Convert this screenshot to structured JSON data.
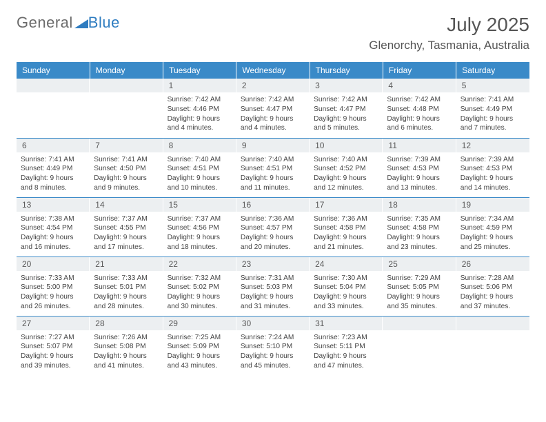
{
  "logo": {
    "word1": "General",
    "word2": "Blue"
  },
  "colors": {
    "header_bg": "#3a8ac8",
    "header_text": "#ffffff",
    "daynum_bg": "#eceff1",
    "border": "#3a8ac8"
  },
  "title": "July 2025",
  "location": "Glenorchy, Tasmania, Australia",
  "day_headers": [
    "Sunday",
    "Monday",
    "Tuesday",
    "Wednesday",
    "Thursday",
    "Friday",
    "Saturday"
  ],
  "weeks": [
    [
      null,
      null,
      {
        "n": "1",
        "sr": "Sunrise: 7:42 AM",
        "ss": "Sunset: 4:46 PM",
        "d1": "Daylight: 9 hours",
        "d2": "and 4 minutes."
      },
      {
        "n": "2",
        "sr": "Sunrise: 7:42 AM",
        "ss": "Sunset: 4:47 PM",
        "d1": "Daylight: 9 hours",
        "d2": "and 4 minutes."
      },
      {
        "n": "3",
        "sr": "Sunrise: 7:42 AM",
        "ss": "Sunset: 4:47 PM",
        "d1": "Daylight: 9 hours",
        "d2": "and 5 minutes."
      },
      {
        "n": "4",
        "sr": "Sunrise: 7:42 AM",
        "ss": "Sunset: 4:48 PM",
        "d1": "Daylight: 9 hours",
        "d2": "and 6 minutes."
      },
      {
        "n": "5",
        "sr": "Sunrise: 7:41 AM",
        "ss": "Sunset: 4:49 PM",
        "d1": "Daylight: 9 hours",
        "d2": "and 7 minutes."
      }
    ],
    [
      {
        "n": "6",
        "sr": "Sunrise: 7:41 AM",
        "ss": "Sunset: 4:49 PM",
        "d1": "Daylight: 9 hours",
        "d2": "and 8 minutes."
      },
      {
        "n": "7",
        "sr": "Sunrise: 7:41 AM",
        "ss": "Sunset: 4:50 PM",
        "d1": "Daylight: 9 hours",
        "d2": "and 9 minutes."
      },
      {
        "n": "8",
        "sr": "Sunrise: 7:40 AM",
        "ss": "Sunset: 4:51 PM",
        "d1": "Daylight: 9 hours",
        "d2": "and 10 minutes."
      },
      {
        "n": "9",
        "sr": "Sunrise: 7:40 AM",
        "ss": "Sunset: 4:51 PM",
        "d1": "Daylight: 9 hours",
        "d2": "and 11 minutes."
      },
      {
        "n": "10",
        "sr": "Sunrise: 7:40 AM",
        "ss": "Sunset: 4:52 PM",
        "d1": "Daylight: 9 hours",
        "d2": "and 12 minutes."
      },
      {
        "n": "11",
        "sr": "Sunrise: 7:39 AM",
        "ss": "Sunset: 4:53 PM",
        "d1": "Daylight: 9 hours",
        "d2": "and 13 minutes."
      },
      {
        "n": "12",
        "sr": "Sunrise: 7:39 AM",
        "ss": "Sunset: 4:53 PM",
        "d1": "Daylight: 9 hours",
        "d2": "and 14 minutes."
      }
    ],
    [
      {
        "n": "13",
        "sr": "Sunrise: 7:38 AM",
        "ss": "Sunset: 4:54 PM",
        "d1": "Daylight: 9 hours",
        "d2": "and 16 minutes."
      },
      {
        "n": "14",
        "sr": "Sunrise: 7:37 AM",
        "ss": "Sunset: 4:55 PM",
        "d1": "Daylight: 9 hours",
        "d2": "and 17 minutes."
      },
      {
        "n": "15",
        "sr": "Sunrise: 7:37 AM",
        "ss": "Sunset: 4:56 PM",
        "d1": "Daylight: 9 hours",
        "d2": "and 18 minutes."
      },
      {
        "n": "16",
        "sr": "Sunrise: 7:36 AM",
        "ss": "Sunset: 4:57 PM",
        "d1": "Daylight: 9 hours",
        "d2": "and 20 minutes."
      },
      {
        "n": "17",
        "sr": "Sunrise: 7:36 AM",
        "ss": "Sunset: 4:58 PM",
        "d1": "Daylight: 9 hours",
        "d2": "and 21 minutes."
      },
      {
        "n": "18",
        "sr": "Sunrise: 7:35 AM",
        "ss": "Sunset: 4:58 PM",
        "d1": "Daylight: 9 hours",
        "d2": "and 23 minutes."
      },
      {
        "n": "19",
        "sr": "Sunrise: 7:34 AM",
        "ss": "Sunset: 4:59 PM",
        "d1": "Daylight: 9 hours",
        "d2": "and 25 minutes."
      }
    ],
    [
      {
        "n": "20",
        "sr": "Sunrise: 7:33 AM",
        "ss": "Sunset: 5:00 PM",
        "d1": "Daylight: 9 hours",
        "d2": "and 26 minutes."
      },
      {
        "n": "21",
        "sr": "Sunrise: 7:33 AM",
        "ss": "Sunset: 5:01 PM",
        "d1": "Daylight: 9 hours",
        "d2": "and 28 minutes."
      },
      {
        "n": "22",
        "sr": "Sunrise: 7:32 AM",
        "ss": "Sunset: 5:02 PM",
        "d1": "Daylight: 9 hours",
        "d2": "and 30 minutes."
      },
      {
        "n": "23",
        "sr": "Sunrise: 7:31 AM",
        "ss": "Sunset: 5:03 PM",
        "d1": "Daylight: 9 hours",
        "d2": "and 31 minutes."
      },
      {
        "n": "24",
        "sr": "Sunrise: 7:30 AM",
        "ss": "Sunset: 5:04 PM",
        "d1": "Daylight: 9 hours",
        "d2": "and 33 minutes."
      },
      {
        "n": "25",
        "sr": "Sunrise: 7:29 AM",
        "ss": "Sunset: 5:05 PM",
        "d1": "Daylight: 9 hours",
        "d2": "and 35 minutes."
      },
      {
        "n": "26",
        "sr": "Sunrise: 7:28 AM",
        "ss": "Sunset: 5:06 PM",
        "d1": "Daylight: 9 hours",
        "d2": "and 37 minutes."
      }
    ],
    [
      {
        "n": "27",
        "sr": "Sunrise: 7:27 AM",
        "ss": "Sunset: 5:07 PM",
        "d1": "Daylight: 9 hours",
        "d2": "and 39 minutes."
      },
      {
        "n": "28",
        "sr": "Sunrise: 7:26 AM",
        "ss": "Sunset: 5:08 PM",
        "d1": "Daylight: 9 hours",
        "d2": "and 41 minutes."
      },
      {
        "n": "29",
        "sr": "Sunrise: 7:25 AM",
        "ss": "Sunset: 5:09 PM",
        "d1": "Daylight: 9 hours",
        "d2": "and 43 minutes."
      },
      {
        "n": "30",
        "sr": "Sunrise: 7:24 AM",
        "ss": "Sunset: 5:10 PM",
        "d1": "Daylight: 9 hours",
        "d2": "and 45 minutes."
      },
      {
        "n": "31",
        "sr": "Sunrise: 7:23 AM",
        "ss": "Sunset: 5:11 PM",
        "d1": "Daylight: 9 hours",
        "d2": "and 47 minutes."
      },
      null,
      null
    ]
  ]
}
